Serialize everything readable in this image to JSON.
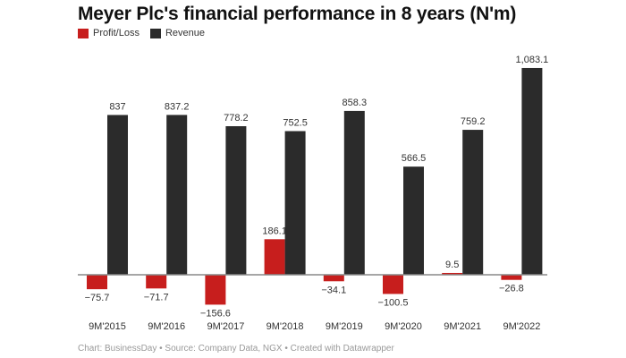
{
  "chart_data": {
    "type": "bar",
    "title": "Meyer Plc's financial performance in 8 years (N'm)",
    "categories": [
      "9M'2015",
      "9M'2016",
      "9M'2017",
      "9M'2018",
      "9M'2019",
      "9M'2020",
      "9M'2021",
      "9M'2022"
    ],
    "series": [
      {
        "name": "Profit/Loss",
        "color": "#c71e1d",
        "values": [
          -75.7,
          -71.7,
          -156.6,
          186.1,
          -34.1,
          -100.5,
          9.5,
          -26.8
        ],
        "labels": [
          "−75.7",
          "−71.7",
          "−156.6",
          "186.1",
          "−34.1",
          "−100.5",
          "9.5",
          "−26.8"
        ]
      },
      {
        "name": "Revenue",
        "color": "#2b2b2b",
        "values": [
          837,
          837.2,
          778.2,
          752.5,
          858.3,
          566.5,
          759.2,
          1083.1
        ],
        "labels": [
          "837",
          "837.2",
          "778.2",
          "752.5",
          "858.3",
          "566.5",
          "759.2",
          "1,083.1"
        ]
      }
    ],
    "legend": "top-left",
    "grid": false,
    "footer": "Chart: BusinessDay • Source: Company Data, NGX • Created with Datawrapper"
  }
}
